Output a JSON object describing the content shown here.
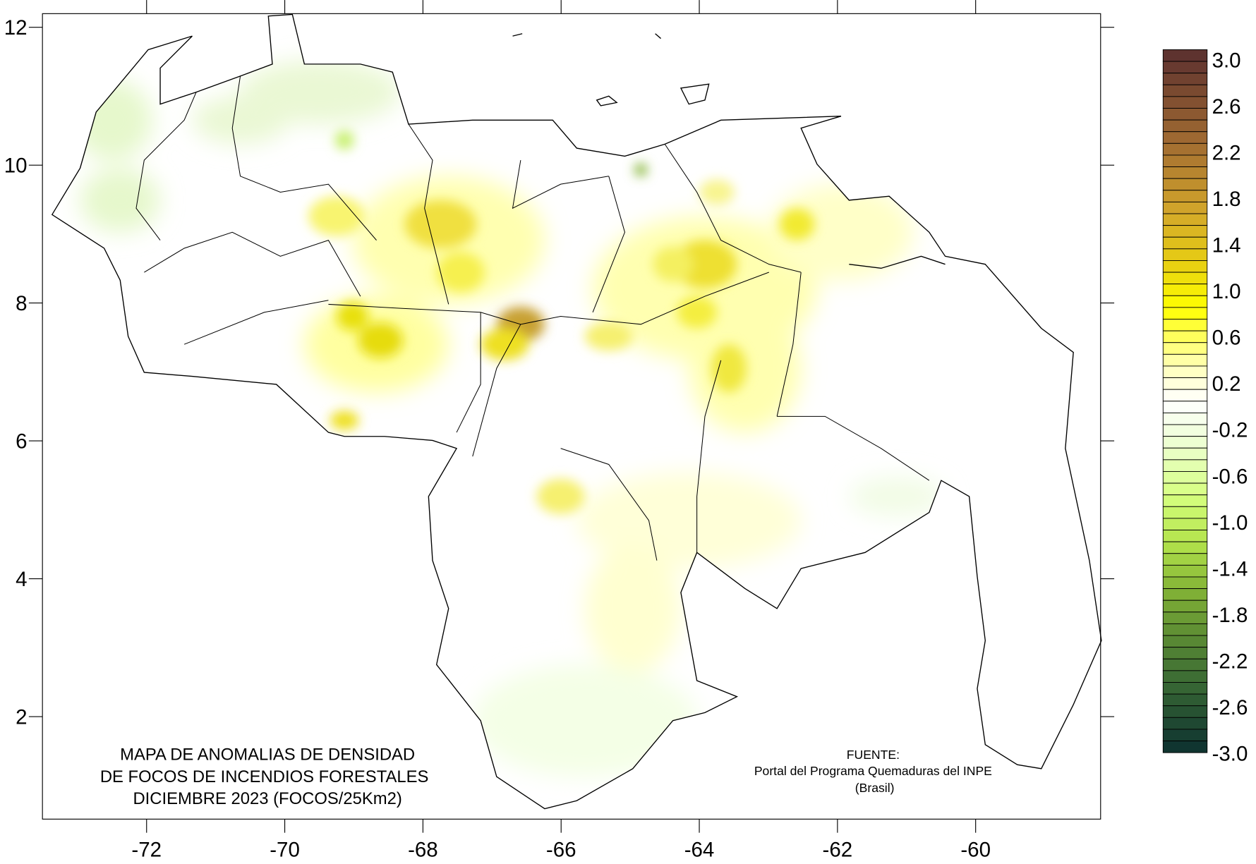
{
  "map": {
    "title_lines": [
      "MAPA DE ANOMALIAS DE DENSIDAD",
      "DE FOCOS DE INCENDIOS FORESTALES",
      "DICIEMBRE 2023 (FOCOS/25Km2)"
    ],
    "source_lines": [
      "FUENTE:",
      "Portal del Programa Quemaduras del INPE",
      "(Brasil)"
    ],
    "x_ticks": [
      "-72",
      "-70",
      "-68",
      "-66",
      "-64",
      "-62",
      "-60"
    ],
    "y_ticks": [
      "12",
      "10",
      "8",
      "6",
      "4",
      "2"
    ]
  },
  "colorbar": {
    "min": -3.0,
    "max": 3.0,
    "step": 0.1,
    "labels": [
      "3.0",
      "2.6",
      "2.2",
      "1.8",
      "1.4",
      "1.0",
      "0.6",
      "0.2",
      "-0.2",
      "-0.6",
      "-1.0",
      "-1.4",
      "-1.8",
      "-2.2",
      "-2.6",
      "-3.0"
    ],
    "color_stops": [
      {
        "v": 3.0,
        "c": "#5a2f2f"
      },
      {
        "v": 2.2,
        "c": "#a26c32"
      },
      {
        "v": 1.6,
        "c": "#d4a82a"
      },
      {
        "v": 1.2,
        "c": "#e6cc14"
      },
      {
        "v": 0.8,
        "c": "#ffff00"
      },
      {
        "v": 0.3,
        "c": "#ffffb8"
      },
      {
        "v": 0.0,
        "c": "#ffffff"
      },
      {
        "v": -0.4,
        "c": "#eaffcc"
      },
      {
        "v": -0.8,
        "c": "#d6ff80"
      },
      {
        "v": -1.2,
        "c": "#b4e44c"
      },
      {
        "v": -1.6,
        "c": "#84b436"
      },
      {
        "v": -2.0,
        "c": "#5c8c34"
      },
      {
        "v": -2.4,
        "c": "#3a6a34"
      },
      {
        "v": -3.0,
        "c": "#0c3030"
      }
    ]
  }
}
